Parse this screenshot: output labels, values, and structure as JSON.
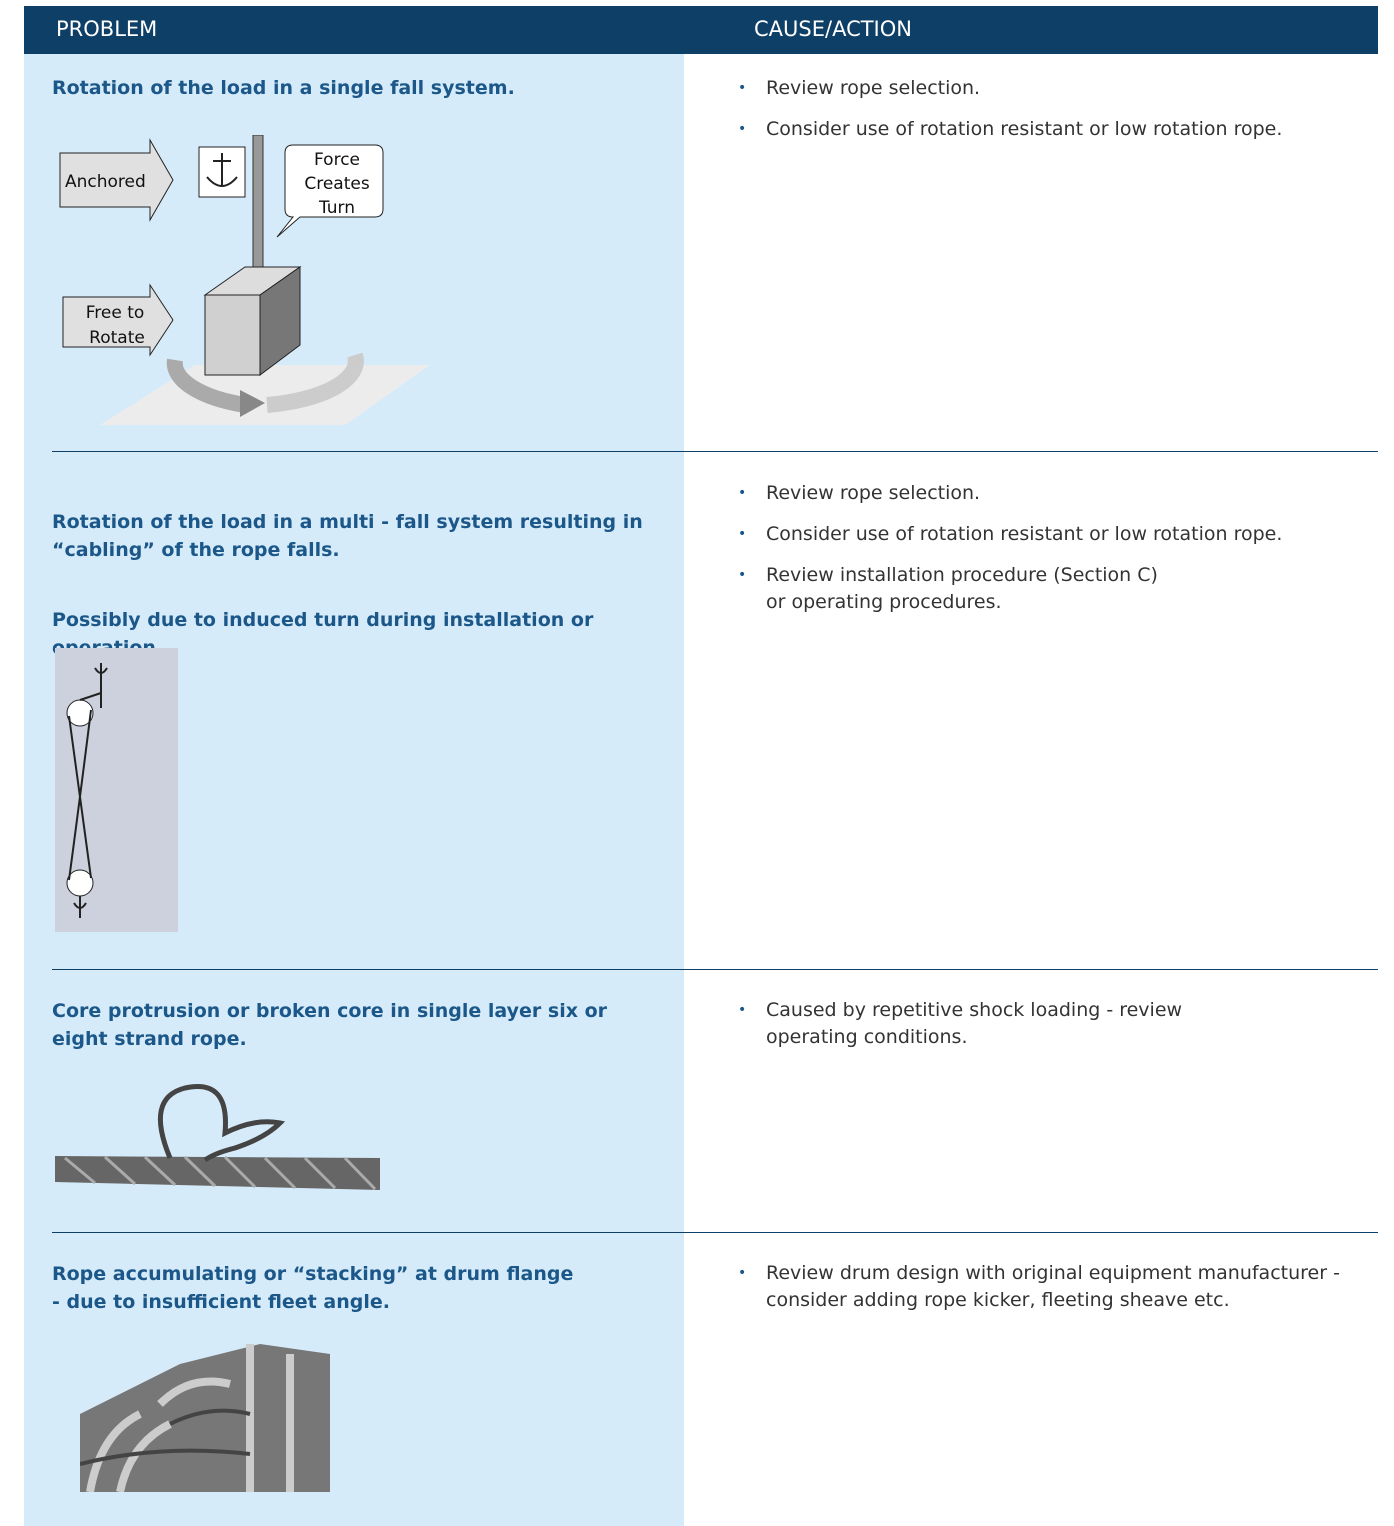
{
  "header": {
    "problem": "PROBLEM",
    "cause": "CAUSE/ACTION"
  },
  "rows": [
    {
      "problem": [
        "Rotation of the load in a single fall system."
      ],
      "figure": {
        "anchored": "Anchored",
        "free": [
          "Free to",
          "Rotate"
        ],
        "force": [
          "Force",
          "Creates",
          "Turn"
        ]
      },
      "actions": [
        "Review rope selection.",
        "Consider use of rotation resistant or low rotation rope."
      ]
    },
    {
      "problem": [
        "Rotation of the load in a multi - fall system resulting in\n“cabling” of the rope falls.",
        "Possibly due to induced turn during installation or\noperation."
      ],
      "actions": [
        "Review rope selection.",
        "Consider use of rotation resistant or low rotation rope.",
        "Review installation procedure (Section C)\nor operating procedures."
      ]
    },
    {
      "problem": [
        "Core protrusion or broken core in single layer six or\neight strand rope."
      ],
      "actions": [
        "Caused by repetitive shock loading - review\noperating conditions."
      ]
    },
    {
      "problem": [
        "Rope accumulating or “stacking” at drum flange\n- due to insufficient fleet angle."
      ],
      "actions": [
        "Review drum design with original equipment manufacturer -\nconsider adding rope kicker, fleeting sheave etc."
      ]
    }
  ]
}
